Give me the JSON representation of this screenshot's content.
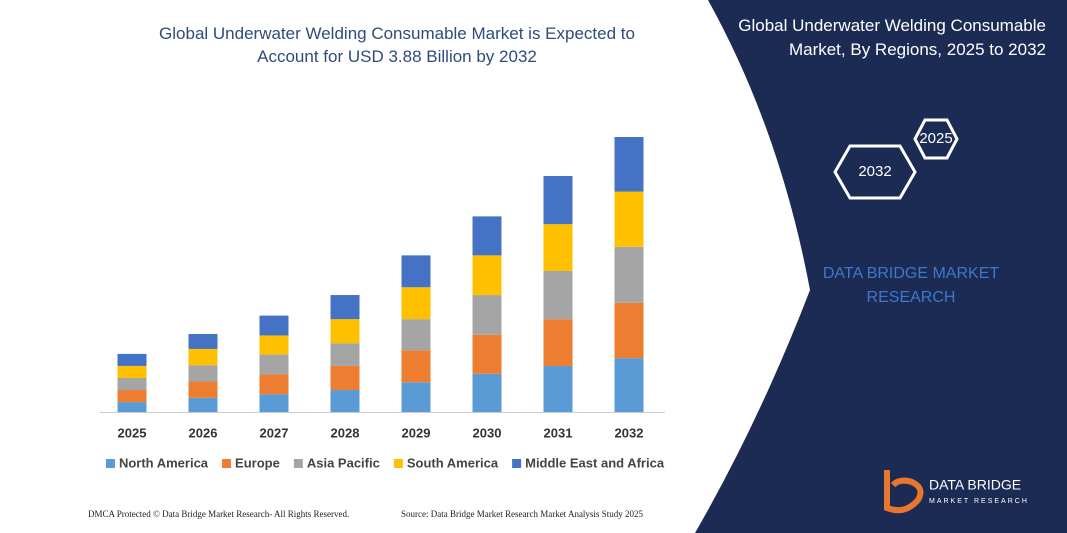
{
  "chart_data": {
    "type": "stacked_bar",
    "title": "Global Underwater Welding Consumable Market is Expected to Account for USD 3.88 Billion by 2032",
    "categories": [
      "2025",
      "2026",
      "2027",
      "2028",
      "2029",
      "2030",
      "2031",
      "2032"
    ],
    "series": [
      {
        "name": "North America",
        "color": "#5b9bd5",
        "values": [
          0.14,
          0.2,
          0.25,
          0.31,
          0.42,
          0.54,
          0.65,
          0.76
        ]
      },
      {
        "name": "Europe",
        "color": "#ed7d31",
        "values": [
          0.17,
          0.23,
          0.28,
          0.34,
          0.45,
          0.55,
          0.66,
          0.78
        ]
      },
      {
        "name": "Asia Pacific",
        "color": "#a5a5a5",
        "values": [
          0.17,
          0.23,
          0.28,
          0.32,
          0.44,
          0.56,
          0.68,
          0.79
        ]
      },
      {
        "name": "South America",
        "color": "#ffc000",
        "values": [
          0.17,
          0.23,
          0.27,
          0.34,
          0.45,
          0.56,
          0.66,
          0.78
        ]
      },
      {
        "name": "Middle East and Africa",
        "color": "#4472c4",
        "values": [
          0.17,
          0.21,
          0.28,
          0.34,
          0.45,
          0.55,
          0.68,
          0.77
        ]
      }
    ],
    "ylim": [
      0,
      3.88
    ],
    "legend": "bottom"
  },
  "panel": {
    "title": "Global Underwater Welding Consumable Market, By Regions, 2025 to 2032",
    "hex_labels": [
      "2025",
      "2032"
    ],
    "brand": "DATA BRIDGE MARKET RESEARCH"
  },
  "logo": {
    "name": "DATA BRIDGE",
    "tagline": "MARKET RESEARCH"
  },
  "footer": {
    "left": "DMCA Protected © Data Bridge Market Research- All Rights Reserved.",
    "right": "Source: Data Bridge Market Research Market Analysis Study 2025"
  }
}
